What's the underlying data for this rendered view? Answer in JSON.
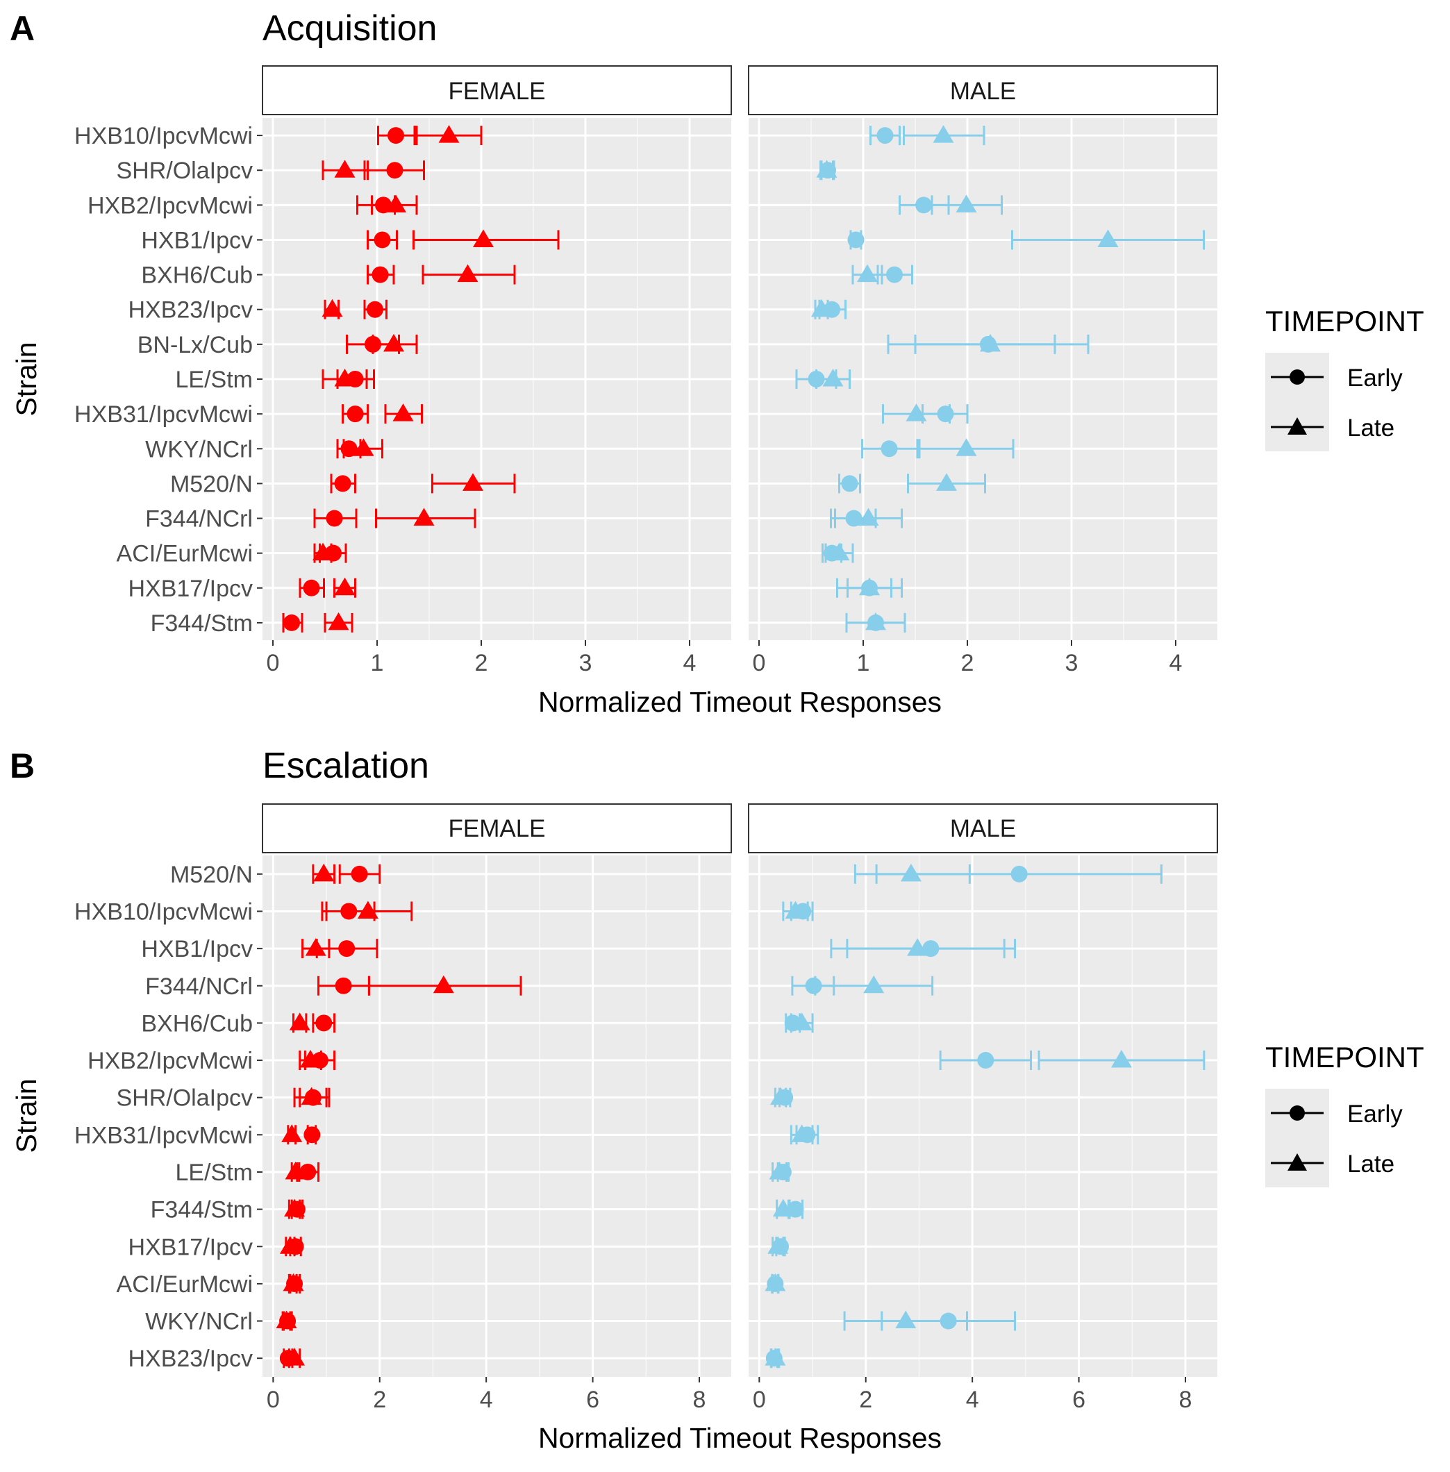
{
  "chart_data": [
    {
      "type": "scatter",
      "panel_label": "A",
      "title": "Acquisition",
      "xlabel": "Normalized Timeout Responses",
      "ylabel": "Strain",
      "xlim": [
        -0.1,
        4.4
      ],
      "xticks": [
        0,
        1,
        2,
        3,
        4
      ],
      "facets": [
        "FEMALE",
        "MALE"
      ],
      "legend": {
        "title": "TIMEPOINT",
        "entries": [
          "Early",
          "Late"
        ],
        "position": "right"
      },
      "colors": {
        "FEMALE": "#ff0000",
        "MALE": "#87ceeb"
      },
      "strains": [
        "HXB10/IpcvMcwi",
        "SHR/OlaIpcv",
        "HXB2/IpcvMcwi",
        "HXB1/Ipcv",
        "BXH6/Cub",
        "HXB23/Ipcv",
        "BN-Lx/Cub",
        "LE/Stm",
        "HXB31/IpcvMcwi",
        "WKY/NCrl",
        "M520/N",
        "F344/NCrl",
        "ACI/EurMcwi",
        "HXB17/Ipcv",
        "F344/Stm"
      ],
      "series": [
        {
          "facet": "FEMALE",
          "name": "Early",
          "values": [
            1.18,
            1.17,
            1.06,
            1.05,
            1.03,
            0.98,
            0.96,
            0.79,
            0.79,
            0.73,
            0.67,
            0.59,
            0.58,
            0.37,
            0.18
          ],
          "lower": [
            1.01,
            0.88,
            0.95,
            0.91,
            0.91,
            0.88,
            0.71,
            0.62,
            0.67,
            0.62,
            0.56,
            0.4,
            0.45,
            0.26,
            0.1
          ],
          "upper": [
            1.36,
            1.45,
            1.17,
            1.19,
            1.16,
            1.09,
            1.21,
            0.97,
            0.91,
            0.84,
            0.79,
            0.8,
            0.7,
            0.49,
            0.28
          ]
        },
        {
          "facet": "FEMALE",
          "name": "Late",
          "values": [
            1.69,
            0.69,
            1.18,
            2.02,
            1.87,
            0.57,
            1.16,
            0.69,
            1.25,
            0.87,
            1.92,
            1.45,
            0.48,
            0.69,
            0.63
          ],
          "lower": [
            1.38,
            0.48,
            0.81,
            1.35,
            1.44,
            0.5,
            0.96,
            0.48,
            1.08,
            0.68,
            1.53,
            0.99,
            0.4,
            0.59,
            0.5
          ],
          "upper": [
            2.0,
            0.91,
            1.38,
            2.74,
            2.32,
            0.63,
            1.38,
            0.9,
            1.43,
            1.05,
            2.32,
            1.94,
            0.56,
            0.79,
            0.76
          ]
        },
        {
          "facet": "MALE",
          "name": "Early",
          "values": [
            1.21,
            0.66,
            1.58,
            0.93,
            1.3,
            0.7,
            2.2,
            0.55,
            1.79,
            1.25,
            0.87,
            0.91,
            0.7,
            1.06,
            1.12
          ],
          "lower": [
            1.07,
            0.6,
            1.35,
            0.88,
            1.14,
            0.58,
            1.24,
            0.36,
            1.57,
            0.99,
            0.77,
            0.69,
            0.61,
            0.85,
            0.84
          ],
          "upper": [
            1.35,
            0.72,
            1.82,
            0.98,
            1.47,
            0.83,
            3.16,
            0.74,
            2.0,
            1.52,
            0.97,
            1.12,
            0.79,
            1.27,
            1.4
          ]
        },
        {
          "facet": "MALE",
          "name": "Late",
          "values": [
            1.77,
            0.65,
            1.99,
            3.35,
            1.04,
            0.6,
            2.22,
            0.71,
            1.51,
            1.99,
            1.8,
            1.05,
            0.77,
            1.06,
            1.12
          ],
          "lower": [
            1.39,
            0.59,
            1.66,
            2.43,
            0.9,
            0.54,
            1.5,
            0.55,
            1.19,
            1.54,
            1.43,
            0.73,
            0.64,
            0.75,
            0.84
          ],
          "upper": [
            2.16,
            0.71,
            2.33,
            4.27,
            1.18,
            0.66,
            2.84,
            0.87,
            1.83,
            2.44,
            2.17,
            1.37,
            0.9,
            1.37,
            1.4
          ]
        }
      ]
    },
    {
      "type": "scatter",
      "panel_label": "B",
      "title": "Escalation",
      "xlabel": "Normalized Timeout Responses",
      "ylabel": "Strain",
      "xlim": [
        -0.2,
        8.6
      ],
      "xticks": [
        0,
        2,
        4,
        6,
        8
      ],
      "facets": [
        "FEMALE",
        "MALE"
      ],
      "legend": {
        "title": "TIMEPOINT",
        "entries": [
          "Early",
          "Late"
        ],
        "position": "right"
      },
      "colors": {
        "FEMALE": "#ff0000",
        "MALE": "#87ceeb"
      },
      "strains": [
        "M520/N",
        "HXB10/IpcvMcwi",
        "HXB1/Ipcv",
        "F344/NCrl",
        "BXH6/Cub",
        "HXB2/IpcvMcwi",
        "SHR/OlaIpcv",
        "HXB31/IpcvMcwi",
        "LE/Stm",
        "F344/Stm",
        "HXB17/Ipcv",
        "ACI/EurMcwi",
        "WKY/NCrl",
        "HXB23/Ipcv"
      ],
      "series": [
        {
          "facet": "FEMALE",
          "name": "Early",
          "values": [
            1.62,
            1.42,
            1.38,
            1.32,
            0.95,
            0.88,
            0.75,
            0.73,
            0.65,
            0.45,
            0.42,
            0.4,
            0.27,
            0.28
          ],
          "lower": [
            1.25,
            0.92,
            0.82,
            0.85,
            0.75,
            0.6,
            0.5,
            0.65,
            0.45,
            0.35,
            0.32,
            0.3,
            0.2,
            0.2
          ],
          "upper": [
            2.0,
            1.9,
            1.95,
            1.8,
            1.15,
            1.15,
            1.0,
            0.8,
            0.85,
            0.55,
            0.52,
            0.5,
            0.35,
            0.36
          ]
        },
        {
          "facet": "FEMALE",
          "name": "Late",
          "values": [
            0.95,
            1.78,
            0.8,
            3.2,
            0.5,
            0.7,
            0.72,
            0.35,
            0.42,
            0.4,
            0.32,
            0.38,
            0.25,
            0.4
          ],
          "lower": [
            0.75,
            1.0,
            0.55,
            1.8,
            0.38,
            0.5,
            0.4,
            0.28,
            0.35,
            0.3,
            0.24,
            0.32,
            0.18,
            0.3
          ],
          "upper": [
            1.15,
            2.6,
            1.05,
            4.65,
            0.62,
            0.9,
            1.05,
            0.42,
            0.49,
            0.5,
            0.4,
            0.44,
            0.32,
            0.5
          ]
        },
        {
          "facet": "MALE",
          "name": "Early",
          "values": [
            4.88,
            0.82,
            3.22,
            1.02,
            0.63,
            4.25,
            0.48,
            0.9,
            0.45,
            0.68,
            0.4,
            0.3,
            3.55,
            0.28
          ],
          "lower": [
            2.2,
            0.6,
            1.65,
            0.62,
            0.5,
            3.4,
            0.38,
            0.7,
            0.35,
            0.55,
            0.32,
            0.25,
            2.3,
            0.22
          ],
          "upper": [
            7.55,
            1.0,
            4.8,
            1.4,
            0.76,
            5.1,
            0.58,
            1.1,
            0.55,
            0.81,
            0.48,
            0.35,
            4.8,
            0.34
          ]
        },
        {
          "facet": "MALE",
          "name": "Late",
          "values": [
            2.85,
            0.68,
            2.97,
            2.15,
            0.8,
            6.8,
            0.4,
            0.8,
            0.38,
            0.45,
            0.35,
            0.3,
            2.75,
            0.3
          ],
          "lower": [
            1.8,
            0.45,
            1.35,
            1.05,
            0.6,
            5.25,
            0.3,
            0.6,
            0.25,
            0.33,
            0.25,
            0.24,
            1.6,
            0.23
          ],
          "upper": [
            3.95,
            0.91,
            4.6,
            3.25,
            1.0,
            8.35,
            0.5,
            1.0,
            0.51,
            0.57,
            0.45,
            0.36,
            3.9,
            0.37
          ]
        }
      ]
    }
  ]
}
